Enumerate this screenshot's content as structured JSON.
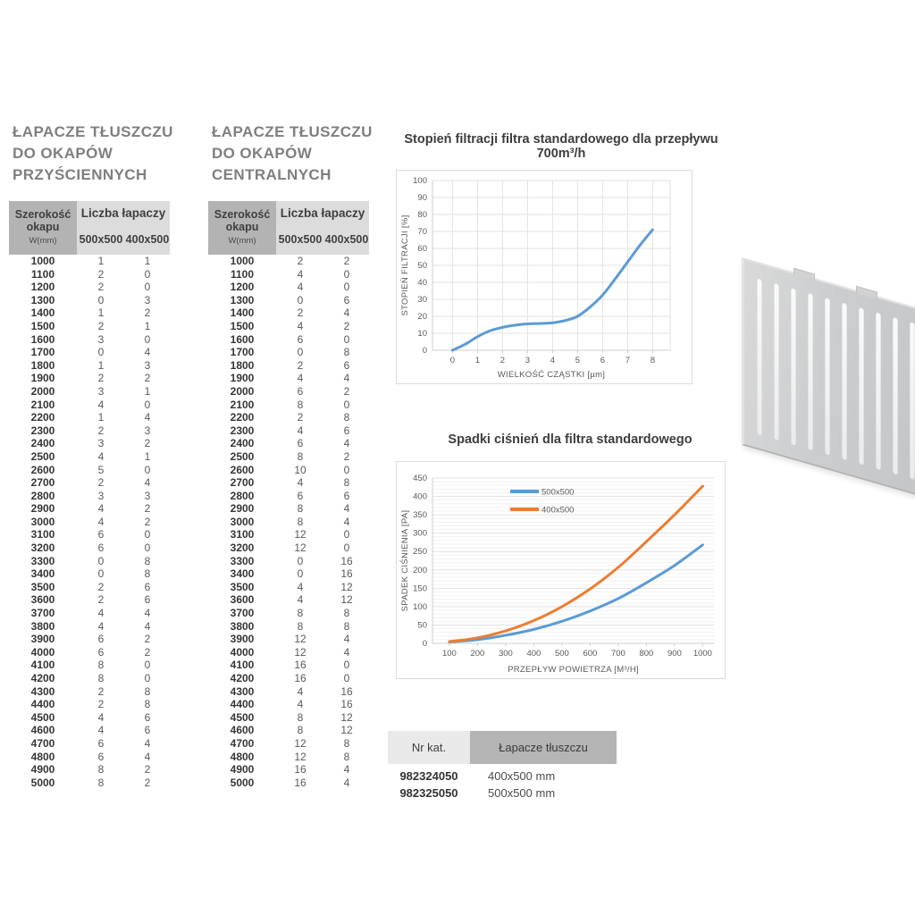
{
  "sections": {
    "wall_table": {
      "title_lines": [
        "ŁAPACZE TŁUSZCZU",
        "DO OKAPÓW",
        "PRZYŚCIENNYCH"
      ],
      "header": {
        "col1_title": "Szerokość okapu",
        "col1_sub": "W(mm)",
        "group_title": "Liczba łapaczy",
        "col2": "500x500",
        "col3": "400x500"
      },
      "rows": [
        [
          1000,
          1,
          1
        ],
        [
          1100,
          2,
          0
        ],
        [
          1200,
          2,
          0
        ],
        [
          1300,
          0,
          3
        ],
        [
          1400,
          1,
          2
        ],
        [
          1500,
          2,
          1
        ],
        [
          1600,
          3,
          0
        ],
        [
          1700,
          0,
          4
        ],
        [
          1800,
          1,
          3
        ],
        [
          1900,
          2,
          2
        ],
        [
          2000,
          3,
          1
        ],
        [
          2100,
          4,
          0
        ],
        [
          2200,
          1,
          4
        ],
        [
          2300,
          2,
          3
        ],
        [
          2400,
          3,
          2
        ],
        [
          2500,
          4,
          1
        ],
        [
          2600,
          5,
          0
        ],
        [
          2700,
          2,
          4
        ],
        [
          2800,
          3,
          3
        ],
        [
          2900,
          4,
          2
        ],
        [
          3000,
          4,
          2
        ],
        [
          3100,
          6,
          0
        ],
        [
          3200,
          6,
          0
        ],
        [
          3300,
          0,
          8
        ],
        [
          3400,
          0,
          8
        ],
        [
          3500,
          2,
          6
        ],
        [
          3600,
          2,
          6
        ],
        [
          3700,
          4,
          4
        ],
        [
          3800,
          4,
          4
        ],
        [
          3900,
          6,
          2
        ],
        [
          4000,
          6,
          2
        ],
        [
          4100,
          8,
          0
        ],
        [
          4200,
          8,
          0
        ],
        [
          4300,
          2,
          8
        ],
        [
          4400,
          2,
          8
        ],
        [
          4500,
          4,
          6
        ],
        [
          4600,
          4,
          6
        ],
        [
          4700,
          6,
          4
        ],
        [
          4800,
          6,
          4
        ],
        [
          4900,
          8,
          2
        ],
        [
          5000,
          8,
          2
        ]
      ]
    },
    "central_table": {
      "title_lines": [
        "ŁAPACZE TŁUSZCZU",
        "DO OKAPÓW",
        "CENTRALNYCH"
      ],
      "header": {
        "col1_title": "Szerokość okapu",
        "col1_sub": "W(mm)",
        "group_title": "Liczba łapaczy",
        "col2": "500x500",
        "col3": "400x500"
      },
      "rows": [
        [
          1000,
          2,
          2
        ],
        [
          1100,
          4,
          0
        ],
        [
          1200,
          4,
          0
        ],
        [
          1300,
          0,
          6
        ],
        [
          1400,
          2,
          4
        ],
        [
          1500,
          4,
          2
        ],
        [
          1600,
          6,
          0
        ],
        [
          1700,
          0,
          8
        ],
        [
          1800,
          2,
          6
        ],
        [
          1900,
          4,
          4
        ],
        [
          2000,
          6,
          2
        ],
        [
          2100,
          8,
          0
        ],
        [
          2200,
          2,
          8
        ],
        [
          2300,
          4,
          6
        ],
        [
          2400,
          6,
          4
        ],
        [
          2500,
          8,
          2
        ],
        [
          2600,
          10,
          0
        ],
        [
          2700,
          4,
          8
        ],
        [
          2800,
          6,
          6
        ],
        [
          2900,
          8,
          4
        ],
        [
          3000,
          8,
          4
        ],
        [
          3100,
          12,
          0
        ],
        [
          3200,
          12,
          0
        ],
        [
          3300,
          0,
          16
        ],
        [
          3400,
          0,
          16
        ],
        [
          3500,
          4,
          12
        ],
        [
          3600,
          4,
          12
        ],
        [
          3700,
          8,
          8
        ],
        [
          3800,
          8,
          8
        ],
        [
          3900,
          12,
          4
        ],
        [
          4000,
          12,
          4
        ],
        [
          4100,
          16,
          0
        ],
        [
          4200,
          16,
          0
        ],
        [
          4300,
          4,
          16
        ],
        [
          4400,
          4,
          16
        ],
        [
          4500,
          8,
          12
        ],
        [
          4600,
          8,
          12
        ],
        [
          4700,
          12,
          8
        ],
        [
          4800,
          12,
          8
        ],
        [
          4900,
          16,
          4
        ],
        [
          5000,
          16,
          4
        ]
      ]
    },
    "catalog_table": {
      "headers": [
        "Nr kat.",
        "Łapacze tłuszczu"
      ],
      "rows": [
        [
          "982324050",
          "400x500 mm"
        ],
        [
          "982325050",
          "500x500 mm"
        ]
      ]
    }
  },
  "chart_data": [
    {
      "type": "line",
      "title": "Stopień filtracji filtra standardowego dla przepływu 700m³/h",
      "xlabel": "WIELKOŚĆ CZĄSTKI [µm]",
      "ylabel": "STOPIEŃ FILTRACJI [%]",
      "xlim": [
        -0.8,
        8.7
      ],
      "ylim": [
        0,
        100
      ],
      "xticks": [
        0,
        1,
        2,
        3,
        4,
        5,
        6,
        7,
        8
      ],
      "yticks": [
        0,
        10,
        20,
        30,
        40,
        50,
        60,
        70,
        80,
        90,
        100
      ],
      "grid": "both",
      "legend": false,
      "series": [
        {
          "name": "filtracja",
          "color": "#5b9bd5",
          "x": [
            0,
            0.5,
            1,
            1.5,
            2,
            2.5,
            3,
            3.5,
            4,
            4.5,
            5,
            5.5,
            6,
            6.5,
            7,
            7.5,
            8
          ],
          "y": [
            0,
            3.5,
            8,
            11.5,
            13.5,
            14.8,
            15.5,
            15.8,
            16.2,
            17.5,
            20,
            25.5,
            32.5,
            42,
            52,
            62,
            71
          ]
        }
      ]
    },
    {
      "type": "line",
      "title": "Spadki ciśnień dla filtra standardowego",
      "xlabel": "PRZEPŁYW POWIETRZA [M³/H]",
      "ylabel": "SPADEK CIŚNIENIA [PA]",
      "xlim": [
        40,
        1040
      ],
      "ylim": [
        0,
        450
      ],
      "xticks": [
        100,
        200,
        300,
        400,
        500,
        600,
        700,
        800,
        900,
        1000
      ],
      "yticks": [
        0,
        50,
        100,
        150,
        200,
        250,
        300,
        350,
        400,
        450
      ],
      "minor_grid_step": 10,
      "grid": "horizontal",
      "legend": true,
      "legend_position": "top-left-inside",
      "series": [
        {
          "name": "500x500",
          "color": "#5b9bd5",
          "x": [
            100,
            200,
            300,
            400,
            500,
            600,
            700,
            800,
            900,
            1000
          ],
          "y": [
            4,
            10,
            22,
            38,
            60,
            88,
            122,
            165,
            212,
            268
          ]
        },
        {
          "name": "400x500",
          "color": "#ed7d31",
          "x": [
            100,
            200,
            300,
            400,
            500,
            600,
            700,
            800,
            900,
            1000
          ],
          "y": [
            5,
            15,
            34,
            62,
            100,
            148,
            207,
            277,
            350,
            428
          ]
        }
      ]
    }
  ],
  "filter_image": {
    "name": "grease-filter-panel",
    "slot_count": 10,
    "body_color": "#c9cbcd",
    "slot_color": "#f5f5f5"
  },
  "colors": {
    "series_blue": "#5b9bd5",
    "series_orange": "#ed7d31",
    "header_dark": "#b3b3b3",
    "header_light": "#dcdcdc",
    "title_gray": "#7f7f7f"
  }
}
